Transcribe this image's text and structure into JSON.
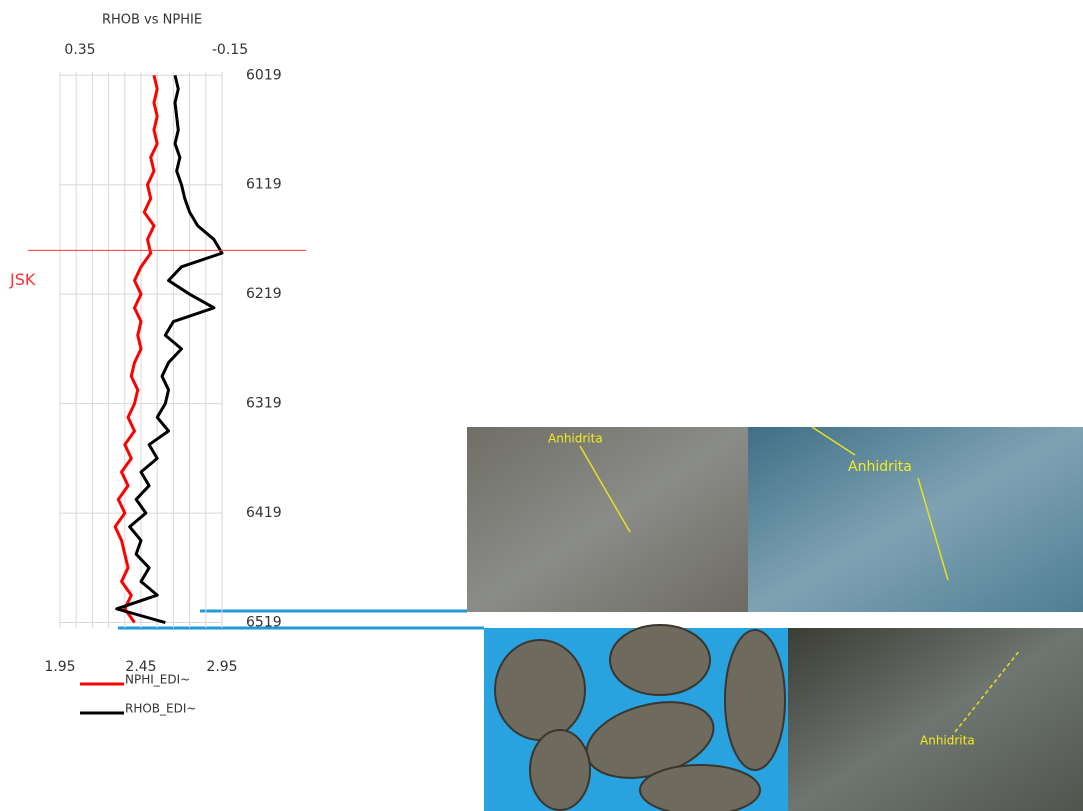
{
  "chart_data": {
    "type": "well-log",
    "title": "RHOB vs NPHIE",
    "x": [
      6019,
      6031.5,
      6044,
      6056.5,
      6069,
      6081.5,
      6094,
      6106.5,
      6119,
      6131.5,
      6144,
      6156.5,
      6169,
      6181.5,
      6194,
      6206.5,
      6219,
      6231.5,
      6244,
      6256.5,
      6269,
      6281.5,
      6294,
      6306.5,
      6319,
      6331.5,
      6344,
      6356.5,
      6369,
      6381.5,
      6394,
      6406.5,
      6419,
      6431.5,
      6444,
      6456.5,
      6469,
      6481.5,
      6494,
      6506.5,
      6519
    ],
    "series": [
      {
        "name": "NPHI_EDI~",
        "color": "#ff0000",
        "axis": "top",
        "values": [
          0.06,
          0.05,
          0.06,
          0.05,
          0.06,
          0.05,
          0.07,
          0.06,
          0.08,
          0.07,
          0.09,
          0.06,
          0.08,
          0.07,
          0.1,
          0.12,
          0.1,
          0.12,
          0.1,
          0.11,
          0.1,
          0.12,
          0.13,
          0.11,
          0.12,
          0.14,
          0.12,
          0.15,
          0.13,
          0.16,
          0.14,
          0.17,
          0.15,
          0.18,
          0.16,
          0.15,
          0.14,
          0.16,
          0.13,
          0.15,
          0.12
        ]
      },
      {
        "name": "RHOB_EDI~",
        "color": "#000000",
        "axis": "bottom",
        "values": [
          2.66,
          2.68,
          2.66,
          2.67,
          2.68,
          2.66,
          2.69,
          2.67,
          2.7,
          2.72,
          2.75,
          2.8,
          2.9,
          2.95,
          2.7,
          2.62,
          2.75,
          2.9,
          2.65,
          2.6,
          2.7,
          2.62,
          2.58,
          2.62,
          2.6,
          2.55,
          2.62,
          2.5,
          2.55,
          2.45,
          2.5,
          2.42,
          2.48,
          2.38,
          2.45,
          2.42,
          2.5,
          2.45,
          2.55,
          2.3,
          2.6
        ]
      }
    ],
    "depth_lim": [
      6016,
      6524
    ],
    "depth_ticks": [
      6019,
      6119,
      6219,
      6319,
      6419,
      6519
    ],
    "bottom_lim": [
      1.95,
      2.95
    ],
    "bottom_ticks": [
      1.95,
      2.45,
      2.95
    ],
    "bottom_grid": [
      1.95,
      2.05,
      2.15,
      2.25,
      2.35,
      2.45,
      2.55,
      2.65,
      2.75,
      2.85,
      2.95
    ],
    "top_lim": [
      0.35,
      -0.15
    ],
    "top_ticks": [
      0.35,
      -0.15
    ],
    "marker": {
      "label": "JSK",
      "depth": 6179,
      "color": "#ff3333"
    },
    "photo_labels": [
      "Anhidrita",
      "Anhidrita",
      "Anhidrita"
    ]
  }
}
